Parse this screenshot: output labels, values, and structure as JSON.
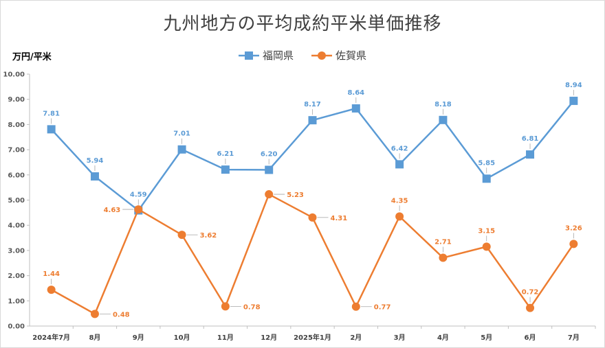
{
  "chart_data": {
    "type": "line",
    "title": "九州地方の平均成約平米単価推移",
    "ylabel": "万円/平米",
    "ylim": [
      0,
      10
    ],
    "ytick_step": 1,
    "ytick_labels": [
      "0.00",
      "1.00",
      "2.00",
      "3.00",
      "4.00",
      "5.00",
      "6.00",
      "7.00",
      "8.00",
      "9.00",
      "10.00"
    ],
    "categories": [
      "2024年7月",
      "8月",
      "9月",
      "10月",
      "11月",
      "12月",
      "2025年1月",
      "2月",
      "3月",
      "4月",
      "5月",
      "6月",
      "7月"
    ],
    "series": [
      {
        "name": "福岡県",
        "color": "#5b9bd5",
        "marker": "square",
        "values": [
          7.81,
          5.94,
          4.59,
          7.01,
          6.21,
          6.2,
          8.17,
          8.64,
          6.42,
          8.18,
          5.85,
          6.81,
          8.94
        ],
        "labels": [
          "7.81",
          "5.94",
          "4.59",
          "7.01",
          "6.21",
          "6.20",
          "8.17",
          "8.64",
          "6.42",
          "8.18",
          "5.85",
          "6.81",
          "8.94"
        ]
      },
      {
        "name": "佐賀県",
        "color": "#ed7d31",
        "marker": "circle",
        "values": [
          1.44,
          0.48,
          4.63,
          3.62,
          0.78,
          5.23,
          4.31,
          0.77,
          4.35,
          2.71,
          3.15,
          0.72,
          3.26
        ],
        "labels": [
          "1.44",
          "0.48",
          "4.63",
          "3.62",
          "0.78",
          "5.23",
          "4.31",
          "0.77",
          "4.35",
          "2.71",
          "3.15",
          "0.72",
          "3.26"
        ]
      }
    ],
    "grid": false,
    "legend_position": "top"
  }
}
